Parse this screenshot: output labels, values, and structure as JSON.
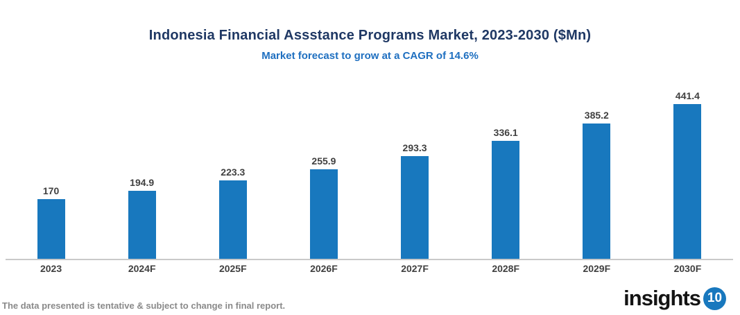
{
  "chart_data": {
    "type": "bar",
    "categories": [
      "2023",
      "2024F",
      "2025F",
      "2026F",
      "2027F",
      "2028F",
      "2029F",
      "2030F"
    ],
    "values": [
      170,
      194.9,
      223.3,
      255.9,
      293.3,
      336.1,
      385.2,
      441.4
    ],
    "value_labels": [
      "170",
      "194.9",
      "223.3",
      "255.9",
      "293.3",
      "336.1",
      "385.2",
      "441.4"
    ],
    "title": "Indonesia Financial Assstance Programs Market, 2023-2030 ($Mn)",
    "subtitle": "Market forecast to grow at a CAGR of 14.6%",
    "xlabel": "",
    "ylabel": "",
    "ylim": [
      0,
      460
    ],
    "grid": false,
    "legend": false,
    "bar_color": "#1878BE"
  },
  "colors": {
    "title": "#1F3864",
    "subtitle": "#1E6FC0",
    "bar": "#1878BE",
    "data_label": "#404040",
    "axis_line": "#C9C9C9",
    "footer_text": "#8A8A8A",
    "logo_text": "#141414",
    "logo_badge": "#1878BE"
  },
  "footer": {
    "note": "The data presented is tentative & subject to change in final report."
  },
  "logo": {
    "text": "insights",
    "badge": "10"
  }
}
